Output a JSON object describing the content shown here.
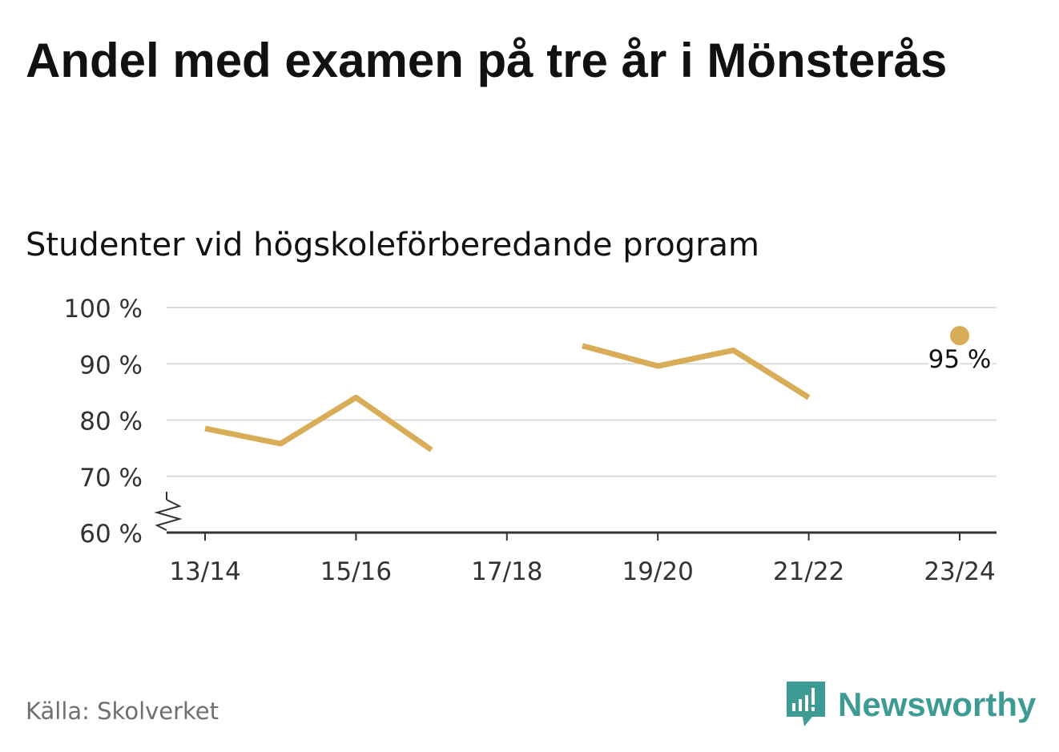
{
  "title": "Andel med examen på tre år i Mönsterås",
  "subtitle": "Studenter vid högskoleförberedande program",
  "source": "Källa: Skolverket",
  "brand": "Newsworthy",
  "colors": {
    "line": "#d9ad57",
    "grid": "#dcdcdc",
    "axis": "#333333",
    "brand": "#3d9b94"
  },
  "chart_data": {
    "type": "line",
    "categories": [
      "13/14",
      "14/15",
      "15/16",
      "16/17",
      "17/18",
      "18/19",
      "19/20",
      "20/21",
      "21/22",
      "22/23",
      "23/24"
    ],
    "tick_labels": [
      "13/14",
      "15/16",
      "17/18",
      "19/20",
      "21/22",
      "23/24"
    ],
    "series": [
      {
        "values": [
          78.5,
          75.8,
          84,
          74.7,
          null,
          93.2,
          89.6,
          92.4,
          84,
          null,
          95
        ]
      }
    ],
    "yticks": [
      "60 %",
      "70 %",
      "80 %",
      "90 %",
      "100 %"
    ],
    "ylim": [
      60,
      100
    ],
    "axis_break": true,
    "grid": true,
    "annotations": [
      {
        "category": "23/24",
        "value": 95,
        "label": "95 %"
      }
    ]
  }
}
